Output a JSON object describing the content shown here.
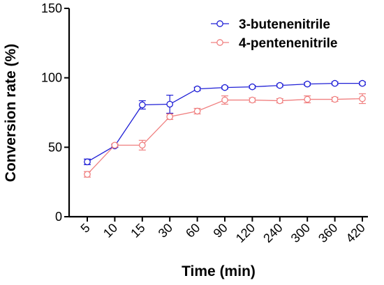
{
  "chart_data": {
    "type": "line",
    "title": "",
    "xlabel": "Time (min)",
    "ylabel": "Conversion rate (%)",
    "categories": [
      "5",
      "10",
      "15",
      "30",
      "60",
      "90",
      "120",
      "240",
      "300",
      "360",
      "420"
    ],
    "ylim": [
      0,
      150
    ],
    "yticks": [
      "0",
      "50",
      "100",
      "150"
    ],
    "grid": false,
    "legend_position": "top-right",
    "series": [
      {
        "name": "3-butenenitrile",
        "color": "#1f1fd6",
        "values": [
          39.5,
          51.0,
          80.5,
          81.0,
          92.0,
          93.0,
          93.5,
          94.5,
          95.5,
          96.0,
          96.0
        ],
        "errors": [
          2.0,
          1.0,
          3.0,
          6.5,
          1.2,
          1.0,
          1.0,
          1.0,
          1.0,
          1.0,
          1.0
        ]
      },
      {
        "name": "4-pentenenitrile",
        "color": "#f08080",
        "values": [
          30.5,
          51.5,
          51.5,
          72.0,
          76.0,
          84.0,
          84.0,
          83.5,
          84.5,
          84.5,
          85.0
        ],
        "errors": [
          2.0,
          1.0,
          3.5,
          2.0,
          2.0,
          3.0,
          1.5,
          1.5,
          2.5,
          1.5,
          3.5
        ]
      }
    ]
  }
}
